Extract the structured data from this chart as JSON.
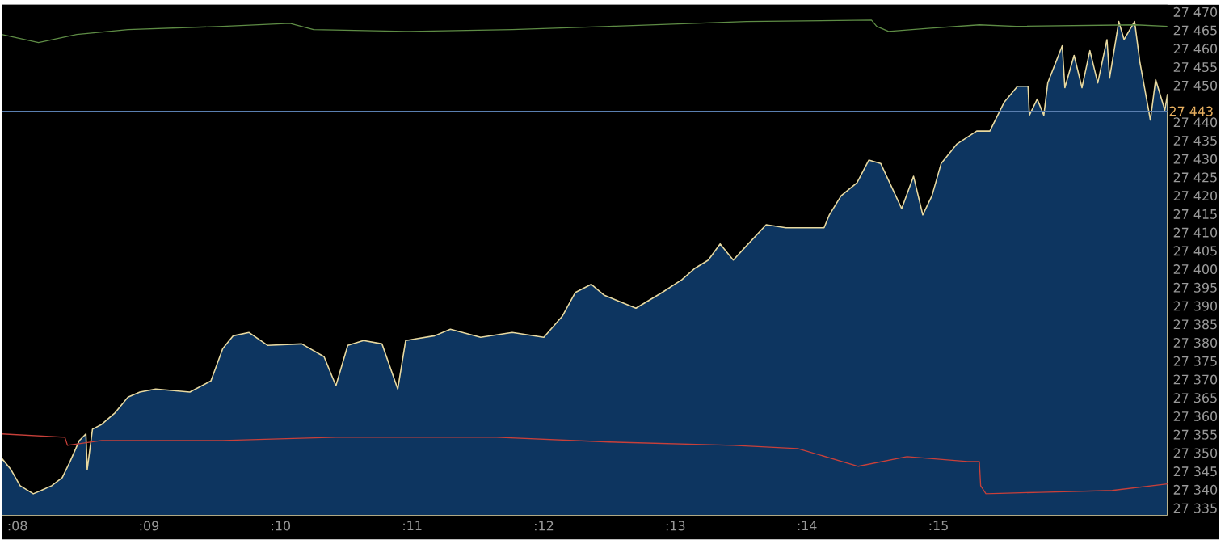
{
  "chart_data": {
    "type": "area",
    "xlim": [
      7.88,
      16.74
    ],
    "ylim": [
      27333,
      27472
    ],
    "xticks": [
      {
        "value": 8,
        "label": ":08"
      },
      {
        "value": 9,
        "label": ":09"
      },
      {
        "value": 10,
        "label": ":10"
      },
      {
        "value": 11,
        "label": ":11"
      },
      {
        "value": 12,
        "label": ":12"
      },
      {
        "value": 13,
        "label": ":13"
      },
      {
        "value": 14,
        "label": ":14"
      },
      {
        "value": 15,
        "label": ":15"
      }
    ],
    "yticks": [
      {
        "value": 27335,
        "label": "27 335"
      },
      {
        "value": 27340,
        "label": "27 340"
      },
      {
        "value": 27345,
        "label": "27 345"
      },
      {
        "value": 27350,
        "label": "27 350"
      },
      {
        "value": 27355,
        "label": "27 355"
      },
      {
        "value": 27360,
        "label": "27 360"
      },
      {
        "value": 27365,
        "label": "27 365"
      },
      {
        "value": 27370,
        "label": "27 370"
      },
      {
        "value": 27375,
        "label": "27 375"
      },
      {
        "value": 27380,
        "label": "27 380"
      },
      {
        "value": 27385,
        "label": "27 385"
      },
      {
        "value": 27390,
        "label": "27 390"
      },
      {
        "value": 27395,
        "label": "27 395"
      },
      {
        "value": 27400,
        "label": "27 400"
      },
      {
        "value": 27405,
        "label": "27 405"
      },
      {
        "value": 27410,
        "label": "27 410"
      },
      {
        "value": 27415,
        "label": "27 415"
      },
      {
        "value": 27420,
        "label": "27 420"
      },
      {
        "value": 27425,
        "label": "27 425"
      },
      {
        "value": 27430,
        "label": "27 430"
      },
      {
        "value": 27435,
        "label": "27 435"
      },
      {
        "value": 27440,
        "label": "27 440"
      },
      {
        "value": 27450,
        "label": "27 450"
      },
      {
        "value": 27455,
        "label": "27 455"
      },
      {
        "value": 27460,
        "label": "27 460"
      },
      {
        "value": 27465,
        "label": "27 465"
      },
      {
        "value": 27470,
        "label": "27 470"
      }
    ],
    "ref_lines": [
      {
        "axis": "y",
        "value": 27443,
        "label": "27 443",
        "color": "#5a7fb0"
      }
    ],
    "series": [
      {
        "color": "#0d3560",
        "x": [
          7.88,
          7.95,
          8.02,
          8.12,
          8.18,
          8.26,
          8.34,
          8.4,
          8.47,
          8.52,
          8.53,
          8.57,
          8.64,
          8.74,
          8.84,
          8.93,
          9.05,
          9.31,
          9.47,
          9.56,
          9.64,
          9.76,
          9.9,
          10.16,
          10.33,
          10.42,
          10.51,
          10.63,
          10.77,
          10.89,
          10.95,
          11.17,
          11.29,
          11.52,
          11.76,
          12.0,
          12.14,
          12.24,
          12.36,
          12.46,
          12.7,
          12.9,
          13.05,
          13.15,
          13.25,
          13.34,
          13.44,
          13.52,
          13.69,
          13.84,
          14.13,
          14.17,
          14.26,
          14.38,
          14.47,
          14.56,
          14.72,
          14.81,
          14.88,
          14.95,
          15.02,
          15.14,
          15.29,
          15.39,
          15.5,
          15.6,
          15.68,
          15.69,
          15.75,
          15.8,
          15.83,
          15.94,
          15.96,
          16.03,
          16.09,
          16.15,
          16.21,
          16.28,
          16.3,
          16.37,
          16.41,
          16.49,
          16.53,
          16.61,
          16.65,
          16.72,
          16.74
        ],
        "values": [
          27348.6,
          27345.5,
          27341.1,
          27338.9,
          27339.8,
          27341.1,
          27343.3,
          27347.7,
          27353.4,
          27355.2,
          27345.5,
          27356.5,
          27357.8,
          27360.9,
          27365.2,
          27366.6,
          27367.4,
          27366.6,
          27369.6,
          27378.4,
          27381.9,
          27382.8,
          27379.3,
          27379.7,
          27376.2,
          27368.3,
          27379.3,
          27380.6,
          27379.7,
          27367.4,
          27380.6,
          27381.9,
          27383.7,
          27381.5,
          27382.8,
          27381.5,
          27387.2,
          27393.7,
          27395.9,
          27392.9,
          27389.4,
          27393.7,
          27397.2,
          27400.3,
          27402.5,
          27406.9,
          27402.5,
          27405.6,
          27412.1,
          27411.3,
          27411.3,
          27414.8,
          27420.0,
          27423.5,
          27429.7,
          27428.8,
          27416.5,
          27425.3,
          27414.8,
          27420.0,
          27428.8,
          27434.1,
          27437.6,
          27437.6,
          27445.5,
          27449.8,
          27449.8,
          27441.9,
          27446.3,
          27441.9,
          27450.7,
          27460.8,
          27449.4,
          27458.2,
          27449.4,
          27459.5,
          27450.7,
          27462.5,
          27452.0,
          27467.4,
          27462.5,
          27467.4,
          27456.4,
          27440.6,
          27451.6,
          27443.3,
          27447.6
        ]
      },
      {
        "type": "line",
        "color": "#5e8c45",
        "x": [
          7.88,
          8.16,
          8.45,
          8.84,
          9.56,
          10.07,
          10.25,
          10.95,
          11.76,
          12.5,
          13.54,
          14.49,
          14.53,
          14.62,
          14.94,
          15.31,
          15.59,
          16.5,
          16.74
        ],
        "values": [
          27463.9,
          27461.7,
          27463.9,
          27465.2,
          27466.1,
          27466.9,
          27465.2,
          27464.7,
          27465.2,
          27466.1,
          27467.4,
          27467.8,
          27466.1,
          27464.7,
          27465.6,
          27466.5,
          27466.1,
          27466.5,
          27466.1
        ]
      },
      {
        "type": "line",
        "color": "#c8403a",
        "x": [
          7.88,
          8.36,
          8.38,
          8.64,
          9.56,
          10.42,
          11.64,
          12.5,
          13.44,
          13.93,
          14.39,
          14.76,
          15.22,
          15.31,
          15.32,
          15.36,
          15.77,
          16.32,
          16.74
        ],
        "values": [
          27355.2,
          27354.3,
          27352.1,
          27353.4,
          27353.4,
          27354.3,
          27354.3,
          27353.0,
          27352.1,
          27351.2,
          27346.4,
          27349.0,
          27347.7,
          27347.7,
          27341.1,
          27338.9,
          27339.3,
          27339.8,
          27341.6
        ]
      }
    ]
  }
}
